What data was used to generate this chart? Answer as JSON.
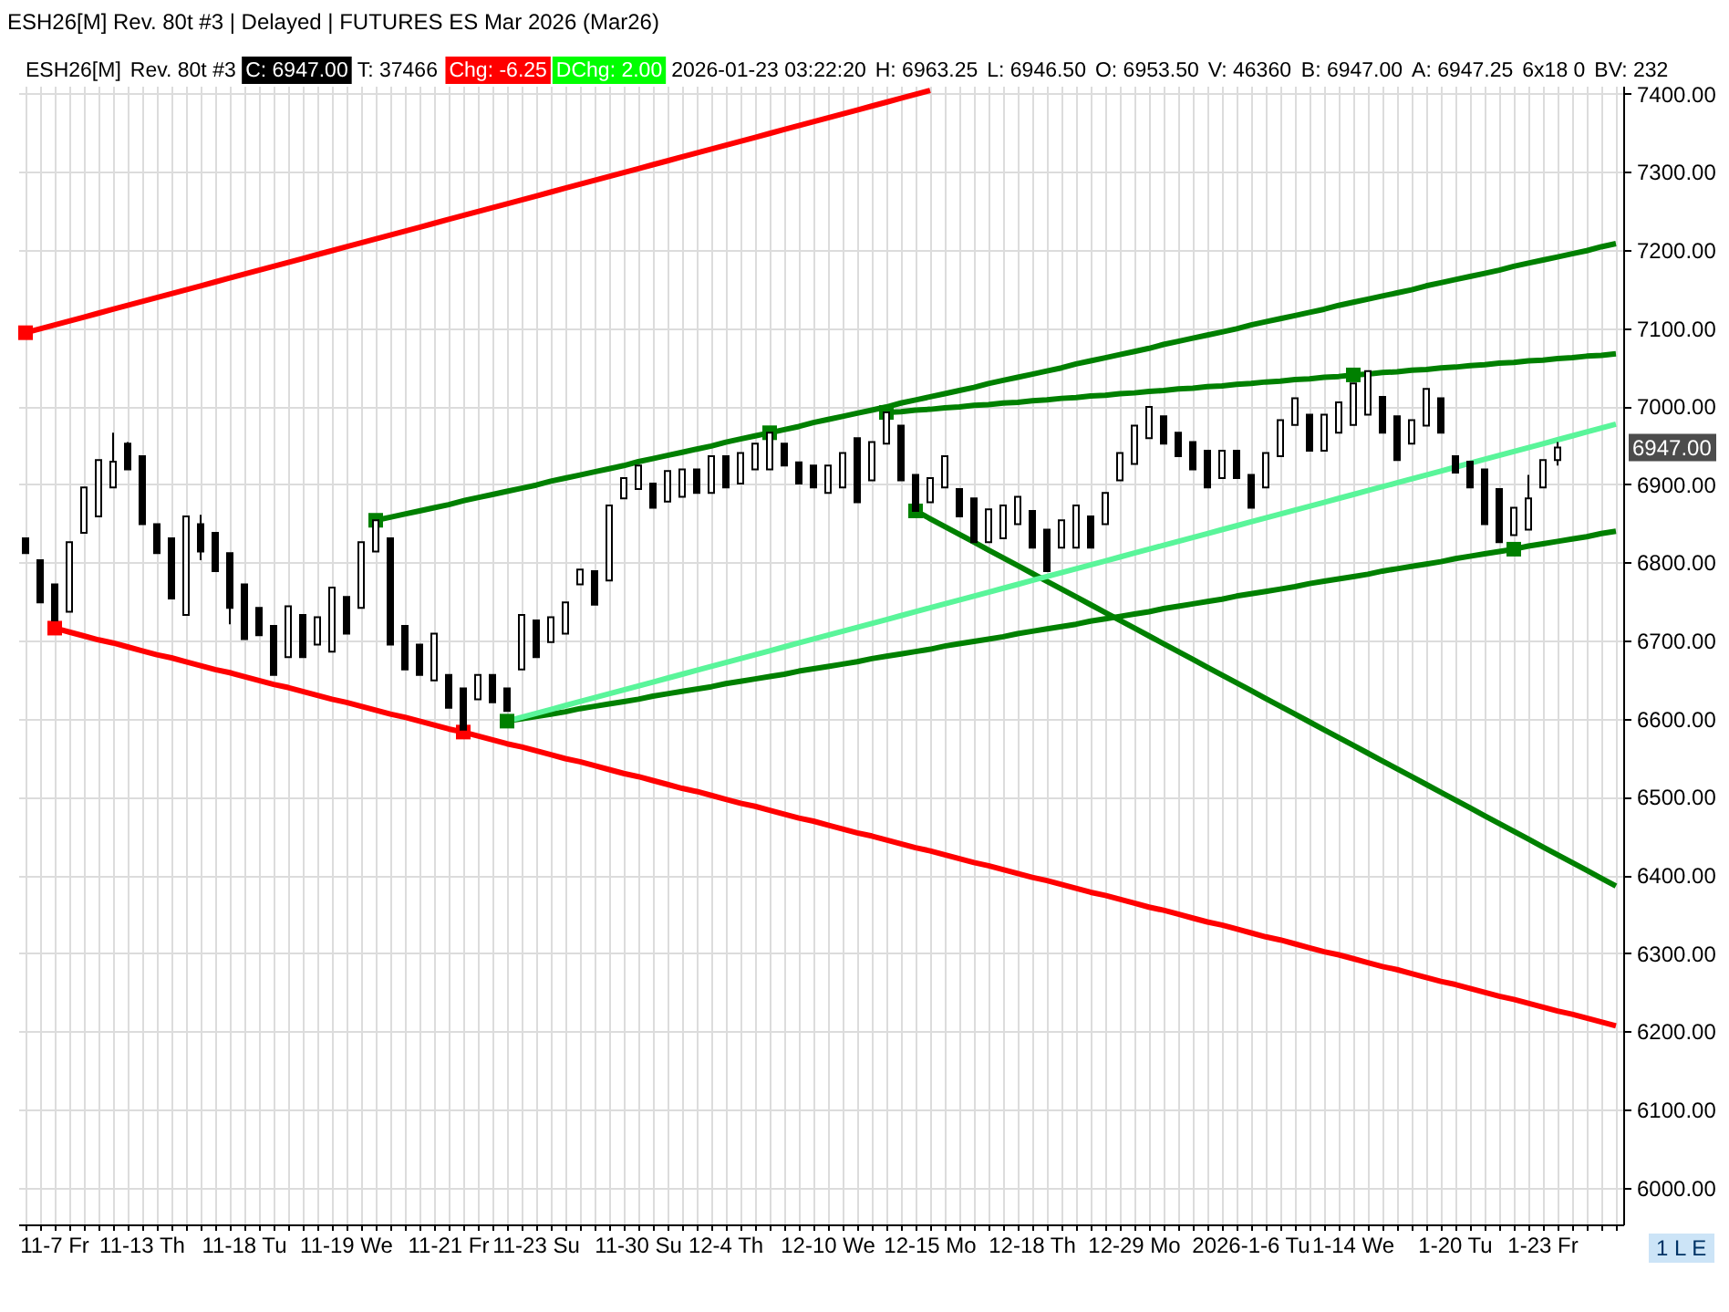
{
  "chart_data": {
    "type": "candlestick",
    "title": "ESH26[M] Rev. 80t #3 | Delayed | FUTURES ES Mar 2026 (Mar26)",
    "color": "#000000",
    "categories": [
      null,
      null,
      "11-7 Fr",
      null,
      null,
      null,
      null,
      null,
      "11-13 Th",
      null,
      null,
      null,
      null,
      null,
      null,
      "11-18 Tu",
      null,
      null,
      null,
      null,
      null,
      null,
      "11-19 We",
      null,
      null,
      null,
      null,
      null,
      null,
      "11-21 Fr",
      null,
      null,
      null,
      null,
      null,
      "11-23 Su",
      null,
      null,
      null,
      null,
      null,
      null,
      "11-30 Su",
      null,
      null,
      null,
      null,
      null,
      "12-4 Th",
      null,
      null,
      null,
      null,
      null,
      null,
      "12-10 We",
      null,
      null,
      null,
      null,
      null,
      null,
      "12-15 Mo",
      null,
      null,
      null,
      null,
      null,
      null,
      "12-18 Th",
      null,
      null,
      null,
      null,
      null,
      null,
      "12-29 Mo",
      null,
      null,
      null,
      null,
      null,
      null,
      null,
      "2026-1-6 Tu",
      null,
      null,
      null,
      null,
      null,
      null,
      "1-14 We",
      null,
      null,
      null,
      null,
      null,
      null,
      "1-20 Tu",
      null,
      null,
      null,
      null,
      null,
      "1-23 Fr",
      null,
      null,
      null,
      null,
      null
    ],
    "ohlc": [
      [
        6831,
        6831,
        6812,
        6812
      ],
      [
        6803,
        6803,
        6749,
        6749
      ],
      [
        6772,
        6772,
        6726,
        6726
      ],
      [
        6737,
        6826,
        6737,
        6826
      ],
      [
        6838,
        6896,
        6838,
        6896
      ],
      [
        6859,
        6931,
        6859,
        6931
      ],
      [
        6896,
        6966,
        6896,
        6929
      ],
      [
        6952,
        6954,
        6919,
        6919
      ],
      [
        6936,
        6936,
        6849,
        6849
      ],
      [
        6849,
        6849,
        6812,
        6812
      ],
      [
        6831,
        6831,
        6754,
        6754
      ],
      [
        6733,
        6859,
        6733,
        6859
      ],
      [
        6849,
        6861,
        6803,
        6814
      ],
      [
        6838,
        6838,
        6789,
        6789
      ],
      [
        6812,
        6812,
        6721,
        6742
      ],
      [
        6772,
        6772,
        6702,
        6702
      ],
      [
        6742,
        6742,
        6707,
        6707
      ],
      [
        6719,
        6719,
        6656,
        6656
      ],
      [
        6679,
        6744,
        6679,
        6744
      ],
      [
        6733,
        6733,
        6679,
        6679
      ],
      [
        6695,
        6730,
        6695,
        6730
      ],
      [
        6686,
        6768,
        6686,
        6768
      ],
      [
        6756,
        6756,
        6709,
        6709
      ],
      [
        6742,
        6826,
        6742,
        6826
      ],
      [
        6814,
        6854,
        6814,
        6854
      ],
      [
        6831,
        6831,
        6695,
        6695
      ],
      [
        6719,
        6719,
        6663,
        6663
      ],
      [
        6695,
        6695,
        6656,
        6656
      ],
      [
        6649,
        6709,
        6649,
        6709
      ],
      [
        6656,
        6656,
        6614,
        6614
      ],
      [
        6639,
        6639,
        6586,
        6586
      ],
      [
        6625,
        6656,
        6625,
        6656
      ],
      [
        6656,
        6656,
        6621,
        6621
      ],
      [
        6639,
        6639,
        6610,
        6610
      ],
      [
        6663,
        6733,
        6663,
        6733
      ],
      [
        6726,
        6726,
        6679,
        6679
      ],
      [
        6698,
        6730,
        6698,
        6730
      ],
      [
        6709,
        6749,
        6709,
        6749
      ],
      [
        6772,
        6791,
        6772,
        6791
      ],
      [
        6789,
        6789,
        6746,
        6746
      ],
      [
        6777,
        6873,
        6777,
        6873
      ],
      [
        6882,
        6908,
        6882,
        6908
      ],
      [
        6894,
        6924,
        6894,
        6924
      ],
      [
        6901,
        6901,
        6870,
        6870
      ],
      [
        6878,
        6917,
        6878,
        6917
      ],
      [
        6884,
        6919,
        6884,
        6919
      ],
      [
        6919,
        6919,
        6889,
        6889
      ],
      [
        6889,
        6936,
        6889,
        6936
      ],
      [
        6936,
        6936,
        6896,
        6896
      ],
      [
        6901,
        6940,
        6901,
        6940
      ],
      [
        6919,
        6952,
        6919,
        6952
      ],
      [
        6919,
        6966,
        6919,
        6966
      ],
      [
        6952,
        6952,
        6924,
        6924
      ],
      [
        6928,
        6928,
        6901,
        6901
      ],
      [
        6924,
        6924,
        6896,
        6896
      ],
      [
        6889,
        6924,
        6889,
        6924
      ],
      [
        6896,
        6940,
        6896,
        6940
      ],
      [
        6959,
        6959,
        6877,
        6877
      ],
      [
        6905,
        6954,
        6905,
        6954
      ],
      [
        6952,
        6992,
        6952,
        6992
      ],
      [
        6975,
        6975,
        6905,
        6905
      ],
      [
        6912,
        6912,
        6866,
        6866
      ],
      [
        6877,
        6908,
        6877,
        6908
      ],
      [
        6896,
        6936,
        6896,
        6936
      ],
      [
        6894,
        6894,
        6859,
        6859
      ],
      [
        6882,
        6882,
        6826,
        6826
      ],
      [
        6826,
        6868,
        6826,
        6868
      ],
      [
        6831,
        6873,
        6831,
        6873
      ],
      [
        6849,
        6884,
        6849,
        6884
      ],
      [
        6866,
        6866,
        6819,
        6819
      ],
      [
        6842,
        6842,
        6789,
        6789
      ],
      [
        6819,
        6854,
        6819,
        6854
      ],
      [
        6819,
        6873,
        6819,
        6873
      ],
      [
        6859,
        6859,
        6819,
        6819
      ],
      [
        6849,
        6889,
        6849,
        6889
      ],
      [
        6905,
        6940,
        6905,
        6940
      ],
      [
        6926,
        6975,
        6926,
        6975
      ],
      [
        6959,
        6999,
        6959,
        6999
      ],
      [
        6987,
        6987,
        6952,
        6952
      ],
      [
        6966,
        6966,
        6936,
        6936
      ],
      [
        6954,
        6954,
        6919,
        6919
      ],
      [
        6943,
        6943,
        6896,
        6896
      ],
      [
        6908,
        6943,
        6908,
        6943
      ],
      [
        6943,
        6943,
        6908,
        6908
      ],
      [
        6912,
        6912,
        6870,
        6870
      ],
      [
        6896,
        6940,
        6896,
        6940
      ],
      [
        6936,
        6982,
        6936,
        6982
      ],
      [
        6976,
        7010,
        6976,
        7010
      ],
      [
        6989,
        6989,
        6943,
        6943
      ],
      [
        6943,
        6989,
        6943,
        6989
      ],
      [
        6966,
        7005,
        6966,
        7005
      ],
      [
        6976,
        7029,
        6976,
        7029
      ],
      [
        6989,
        7045,
        6989,
        7045
      ],
      [
        7012,
        7012,
        6966,
        6966
      ],
      [
        6987,
        6987,
        6931,
        6931
      ],
      [
        6952,
        6982,
        6952,
        6982
      ],
      [
        6975,
        7022,
        6975,
        7022
      ],
      [
        7010,
        7010,
        6966,
        6966
      ],
      [
        6936,
        6936,
        6915,
        6915
      ],
      [
        6929,
        6929,
        6896,
        6896
      ],
      [
        6919,
        6919,
        6849,
        6849
      ],
      [
        6894,
        6894,
        6826,
        6826
      ],
      [
        6835,
        6870,
        6835,
        6870
      ],
      [
        6842,
        6912,
        6842,
        6882
      ],
      [
        6896,
        6931,
        6896,
        6931
      ],
      [
        6931,
        6954,
        6924,
        6947
      ],
      null,
      null,
      null,
      null
    ],
    "series": [
      {
        "type": "line",
        "color": "#ff0000",
        "values": [
          7094,
          7099,
          7104,
          7109,
          7114,
          7119,
          7124,
          7129,
          7134,
          7139,
          7144,
          7149,
          7154,
          7159,
          7164,
          7169,
          7174,
          7179,
          7184,
          7189,
          7194,
          7199,
          7204,
          7209,
          7214,
          7219,
          7224,
          7229,
          7234,
          7239,
          7244,
          7249,
          7254,
          7259,
          7264,
          7269,
          7274,
          7279,
          7284,
          7289,
          7294,
          7299,
          7304,
          7309,
          7314,
          7319,
          7324,
          7329,
          7334,
          7339,
          7344,
          7349,
          7354,
          7359,
          7364,
          7369,
          7374,
          7379,
          7384,
          7389,
          7394,
          7399,
          7404,
          null,
          null,
          null,
          null,
          null,
          null,
          null,
          null,
          null,
          null,
          null,
          null,
          null,
          null,
          null,
          null,
          null,
          null,
          null,
          null,
          null,
          null,
          null,
          null,
          null,
          null,
          null,
          null,
          null,
          null,
          null,
          null,
          null,
          null,
          null,
          null,
          null,
          null,
          null,
          null,
          null,
          null,
          null,
          null,
          null,
          null,
          null
        ]
      },
      {
        "type": "line",
        "color": "#ff0000",
        "values": [
          null,
          null,
          6716,
          6711,
          6706,
          6701,
          6697,
          6692,
          6687,
          6682,
          6678,
          6673,
          6668,
          6663,
          6659,
          6654,
          6649,
          6644,
          6640,
          6635,
          6630,
          6625,
          6621,
          6616,
          6611,
          6606,
          6602,
          6597,
          6592,
          6587,
          6583,
          6578,
          6573,
          6568,
          6564,
          6559,
          6554,
          6549,
          6545,
          6540,
          6535,
          6530,
          6526,
          6521,
          6516,
          6511,
          6507,
          6502,
          6497,
          6492,
          6488,
          6483,
          6478,
          6473,
          6469,
          6464,
          6459,
          6454,
          6450,
          6445,
          6440,
          6435,
          6431,
          6426,
          6421,
          6416,
          6412,
          6407,
          6402,
          6397,
          6393,
          6388,
          6383,
          6378,
          6374,
          6369,
          6364,
          6359,
          6355,
          6350,
          6345,
          6340,
          6336,
          6331,
          6326,
          6321,
          6317,
          6312,
          6307,
          6302,
          6298,
          6293,
          6288,
          6283,
          6279,
          6274,
          6269,
          6264,
          6260,
          6255,
          6250,
          6245,
          6241,
          6236,
          6231,
          6226,
          6222,
          6217,
          6212,
          6207
        ]
      },
      {
        "type": "line",
        "color": "#008000",
        "values": [
          null,
          null,
          null,
          null,
          null,
          null,
          null,
          null,
          null,
          null,
          null,
          null,
          null,
          null,
          null,
          null,
          null,
          null,
          null,
          null,
          null,
          null,
          null,
          null,
          6854,
          6858,
          6862,
          6866,
          6870,
          6874,
          6879,
          6883,
          6887,
          6891,
          6895,
          6899,
          6904,
          6908,
          6912,
          6916,
          6920,
          6924,
          6929,
          6933,
          6937,
          6941,
          6945,
          6949,
          6954,
          6958,
          6962,
          6966,
          6970,
          6974,
          6979,
          6983,
          6987,
          6991,
          6995,
          6999,
          7004,
          7008,
          7012,
          7016,
          7020,
          7024,
          7029,
          7033,
          7037,
          7041,
          7045,
          7049,
          7054,
          7058,
          7062,
          7066,
          7070,
          7074,
          7079,
          7083,
          7087,
          7091,
          7095,
          7099,
          7104,
          7108,
          7112,
          7116,
          7120,
          7124,
          7129,
          7133,
          7137,
          7141,
          7145,
          7149,
          7154,
          7158,
          7162,
          7166,
          7170,
          7174,
          7179,
          7183,
          7187,
          7191,
          7195,
          7199,
          7204,
          7208
        ]
      },
      {
        "type": "line",
        "color": "#008000",
        "values": [
          null,
          null,
          null,
          null,
          null,
          null,
          null,
          null,
          null,
          null,
          null,
          null,
          null,
          null,
          null,
          null,
          null,
          null,
          null,
          null,
          null,
          null,
          null,
          null,
          null,
          null,
          null,
          null,
          null,
          null,
          null,
          null,
          null,
          null,
          null,
          null,
          null,
          null,
          null,
          null,
          null,
          null,
          null,
          null,
          null,
          null,
          null,
          null,
          null,
          null,
          null,
          null,
          null,
          null,
          null,
          null,
          null,
          null,
          null,
          6992,
          6993,
          6995,
          6996,
          6998,
          6999,
          7001,
          7002,
          7004,
          7005,
          7007,
          7008,
          7010,
          7011,
          7013,
          7014,
          7016,
          7017,
          7019,
          7020,
          7022,
          7023,
          7025,
          7026,
          7028,
          7029,
          7031,
          7032,
          7034,
          7035,
          7037,
          7038,
          7040,
          7041,
          7043,
          7044,
          7046,
          7047,
          7049,
          7050,
          7052,
          7053,
          7055,
          7056,
          7058,
          7059,
          7061,
          7062,
          7064,
          7065,
          7067
        ]
      },
      {
        "type": "line",
        "color": "#008000",
        "values": [
          null,
          null,
          null,
          null,
          null,
          null,
          null,
          null,
          null,
          null,
          null,
          null,
          null,
          null,
          null,
          null,
          null,
          null,
          null,
          null,
          null,
          null,
          null,
          null,
          null,
          null,
          null,
          null,
          null,
          null,
          null,
          null,
          null,
          null,
          null,
          null,
          null,
          null,
          null,
          null,
          null,
          null,
          null,
          null,
          null,
          null,
          null,
          null,
          null,
          null,
          null,
          null,
          null,
          null,
          null,
          null,
          null,
          null,
          null,
          null,
          null,
          6866,
          6856,
          6846,
          6836,
          6826,
          6816,
          6806,
          6796,
          6786,
          6776,
          6766,
          6756,
          6746,
          6736,
          6726,
          6716,
          6706,
          6696,
          6686,
          6676,
          6666,
          6656,
          6646,
          6636,
          6626,
          6616,
          6606,
          6596,
          6586,
          6576,
          6566,
          6556,
          6546,
          6536,
          6526,
          6516,
          6506,
          6496,
          6486,
          6476,
          6466,
          6456,
          6446,
          6436,
          6426,
          6416,
          6406,
          6396,
          6386
        ]
      },
      {
        "type": "line",
        "color": "#008000",
        "values": [
          null,
          null,
          null,
          null,
          null,
          null,
          null,
          null,
          null,
          null,
          null,
          null,
          null,
          null,
          null,
          null,
          null,
          null,
          null,
          null,
          null,
          null,
          null,
          null,
          null,
          null,
          null,
          null,
          null,
          null,
          null,
          null,
          null,
          6597,
          6600,
          6603,
          6606,
          6609,
          6613,
          6616,
          6619,
          6622,
          6625,
          6629,
          6632,
          6635,
          6638,
          6641,
          6645,
          6648,
          6651,
          6654,
          6657,
          6661,
          6664,
          6667,
          6670,
          6673,
          6677,
          6680,
          6683,
          6686,
          6689,
          6693,
          6696,
          6699,
          6702,
          6705,
          6709,
          6712,
          6715,
          6718,
          6721,
          6725,
          6728,
          6731,
          6734,
          6737,
          6741,
          6744,
          6747,
          6750,
          6753,
          6757,
          6760,
          6763,
          6766,
          6769,
          6773,
          6776,
          6779,
          6782,
          6785,
          6789,
          6792,
          6795,
          6798,
          6801,
          6805,
          6808,
          6811,
          6814,
          6817,
          6821,
          6824,
          6827,
          6830,
          6833,
          6837,
          6840
        ]
      },
      {
        "type": "line",
        "color": "#5af59a",
        "values": [
          null,
          null,
          null,
          null,
          null,
          null,
          null,
          null,
          null,
          null,
          null,
          null,
          null,
          null,
          null,
          null,
          null,
          null,
          null,
          null,
          null,
          null,
          null,
          null,
          null,
          null,
          null,
          null,
          null,
          null,
          null,
          null,
          null,
          6597,
          6602,
          6607,
          6612,
          6617,
          6622,
          6627,
          6632,
          6637,
          6642,
          6647,
          6652,
          6657,
          6662,
          6667,
          6672,
          6677,
          6682,
          6687,
          6692,
          6697,
          6702,
          6707,
          6712,
          6717,
          6722,
          6727,
          6732,
          6737,
          6742,
          6747,
          6752,
          6757,
          6762,
          6767,
          6772,
          6777,
          6782,
          6787,
          6792,
          6797,
          6802,
          6807,
          6812,
          6817,
          6822,
          6827,
          6832,
          6837,
          6842,
          6847,
          6852,
          6857,
          6862,
          6867,
          6872,
          6877,
          6882,
          6887,
          6892,
          6897,
          6902,
          6907,
          6912,
          6917,
          6922,
          6927,
          6932,
          6937,
          6942,
          6947,
          6952,
          6957,
          6962,
          6967,
          6972,
          6977
        ]
      },
      {
        "type": "scatter",
        "marker": "square",
        "color": "#ff0000",
        "values": [
          7094,
          null,
          6716,
          null,
          null,
          null,
          null,
          null,
          null,
          null,
          null,
          null,
          null,
          null,
          null,
          null,
          null,
          null,
          null,
          null,
          null,
          null,
          null,
          null,
          null,
          null,
          null,
          null,
          null,
          null,
          6583,
          null,
          null,
          null,
          null,
          null,
          null,
          null,
          null,
          null,
          null,
          null,
          null,
          null,
          null,
          null,
          null,
          null,
          null,
          null,
          null,
          null,
          null,
          null,
          null,
          null,
          null,
          null,
          null,
          null,
          null,
          null,
          null,
          null,
          null,
          null,
          null,
          null,
          null,
          null,
          null,
          null,
          null,
          null,
          null,
          null,
          null,
          null,
          null,
          null,
          null,
          null,
          null,
          null,
          null,
          null,
          null,
          null,
          null,
          null,
          null,
          null,
          null,
          null,
          null,
          null,
          null,
          null,
          null,
          null,
          null,
          null,
          null,
          null,
          null,
          null,
          null,
          null,
          null,
          null
        ]
      },
      {
        "type": "scatter",
        "marker": "square",
        "color": "#008000",
        "values": [
          null,
          null,
          null,
          null,
          null,
          null,
          null,
          null,
          null,
          null,
          null,
          null,
          null,
          null,
          null,
          null,
          null,
          null,
          null,
          null,
          null,
          null,
          null,
          null,
          6854,
          null,
          null,
          null,
          null,
          null,
          null,
          null,
          null,
          6597,
          null,
          null,
          null,
          null,
          null,
          null,
          null,
          null,
          null,
          null,
          null,
          null,
          null,
          null,
          null,
          null,
          null,
          6966,
          null,
          null,
          null,
          null,
          null,
          null,
          null,
          6992,
          null,
          6866,
          null,
          null,
          null,
          null,
          null,
          null,
          null,
          null,
          null,
          null,
          null,
          null,
          null,
          null,
          null,
          null,
          null,
          null,
          null,
          null,
          null,
          null,
          null,
          null,
          null,
          null,
          null,
          null,
          null,
          7040,
          null,
          null,
          null,
          null,
          null,
          null,
          null,
          null,
          null,
          null,
          6817,
          null,
          null,
          null,
          null,
          null,
          null,
          null
        ]
      }
    ],
    "ylim": [
      5953,
      7410
    ],
    "yticks": [
      {
        "value": 6000,
        "label": "6000.00"
      },
      {
        "value": 6100,
        "label": "6100.00"
      },
      {
        "value": 6200,
        "label": "6200.00"
      },
      {
        "value": 6300,
        "label": "6300.00"
      },
      {
        "value": 6400,
        "label": "6400.00"
      },
      {
        "value": 6500,
        "label": "6500.00"
      },
      {
        "value": 6600,
        "label": "6600.00"
      },
      {
        "value": 6700,
        "label": "6700.00"
      },
      {
        "value": 6800,
        "label": "6800.00"
      },
      {
        "value": 6900,
        "label": "6900.00"
      },
      {
        "value": 7000,
        "label": "7000.00"
      },
      {
        "value": 7100,
        "label": "7100.00"
      },
      {
        "value": 7200,
        "label": "7200.00"
      },
      {
        "value": 7300,
        "label": "7300.00"
      },
      {
        "value": 7400,
        "label": "7400.00"
      }
    ],
    "grid": true,
    "annotations": [
      "ESH26[M]",
      "Rev. 80t #3",
      "C: 6947.00",
      "T: 37466",
      "Chg: -6.25",
      "DChg: 2.00",
      "2026-01-23 03:22:20",
      "H: 6963.25",
      "L: 6946.50",
      "O: 6953.50",
      "V: 46360",
      "B: 6947.00",
      "A: 6947.25",
      "6x18 0",
      "BV: 232",
      "6947.00",
      "1 L E"
    ]
  }
}
